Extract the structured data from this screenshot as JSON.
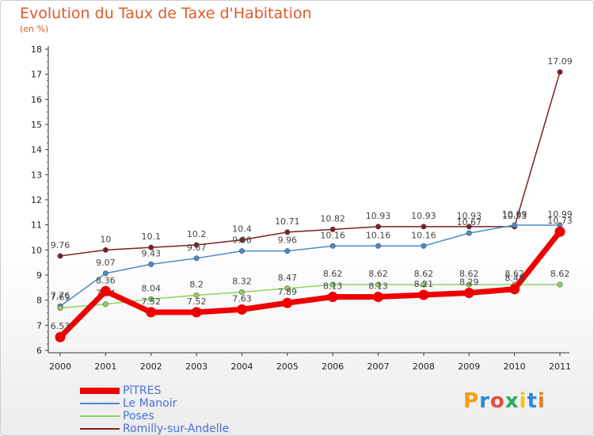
{
  "chart_data": {
    "type": "line",
    "title": "Evolution du Taux de Taxe d'Habitation",
    "unit_label": "(en %)",
    "categories": [
      "2000",
      "2001",
      "2002",
      "2003",
      "2004",
      "2005",
      "2006",
      "2007",
      "2008",
      "2009",
      "2010",
      "2011"
    ],
    "ylim": [
      6,
      18
    ],
    "yticks": [
      "6",
      "7",
      "8",
      "9",
      "10",
      "11",
      "12",
      "13",
      "14",
      "15",
      "16",
      "17",
      "18"
    ],
    "grid": false,
    "legend_position": "bottom-left",
    "series": [
      {
        "name": "Romilly-sur-Andelle",
        "color": "#7b1f1f",
        "values": [
          9.76,
          10,
          10.1,
          10.2,
          10.4,
          10.71,
          10.82,
          10.93,
          10.93,
          10.93,
          10.93,
          17.09
        ],
        "labels": [
          "9.76",
          "10",
          "10.1",
          "10.2",
          "10.4",
          "10.71",
          "10.82",
          "10.93",
          "10.93",
          "10.93",
          "10.93",
          "17.09"
        ]
      },
      {
        "name": "Le Manoir",
        "color": "#4a8cc8",
        "values": [
          7.76,
          9.07,
          9.43,
          9.67,
          9.96,
          9.96,
          10.16,
          10.16,
          10.16,
          10.67,
          10.99,
          10.99
        ],
        "labels": [
          "7.76",
          "9.07",
          "9.43",
          "9.67",
          "9.96",
          "9.96",
          "10.16",
          "10.16",
          "10.16",
          "10.67",
          "10.99",
          "10.99"
        ]
      },
      {
        "name": "Poses",
        "color": "#8ed460",
        "values": [
          7.69,
          7.84,
          8.04,
          8.2,
          8.32,
          8.47,
          8.62,
          8.62,
          8.62,
          8.62,
          8.62,
          8.62
        ],
        "labels": [
          "7.69",
          "7.84",
          "8.04",
          "8.2",
          "8.32",
          "8.47",
          "8.62",
          "8.62",
          "8.62",
          "8.62",
          "8.62",
          "8.62"
        ]
      },
      {
        "name": "PîTRES",
        "color": "#ee0000",
        "values": [
          6.53,
          8.36,
          7.52,
          7.52,
          7.63,
          7.89,
          8.13,
          8.13,
          8.21,
          8.29,
          8.44,
          10.73
        ],
        "labels": [
          "6.53",
          "8.36",
          "7.52",
          "7.52",
          "7.63",
          "7.89",
          "8.13",
          "8.13",
          "8.21",
          "8.29",
          "8.44",
          "10.73"
        ]
      }
    ],
    "legend": [
      {
        "name": "PîTRES",
        "color": "#ee0000"
      },
      {
        "name": "Le Manoir",
        "color": "#4a8cc8"
      },
      {
        "name": "Poses",
        "color": "#8ed460"
      },
      {
        "name": "Romilly-sur-Andelle",
        "color": "#7b1f1f"
      }
    ]
  },
  "brand": {
    "letters": [
      "P",
      "r",
      "o",
      "x",
      "i",
      "t",
      "i"
    ],
    "colors": [
      "#f39c12",
      "#2e86de",
      "#e74c3c",
      "#27ae60",
      "#f1c40f",
      "#2e86de",
      "#e67e22"
    ]
  }
}
